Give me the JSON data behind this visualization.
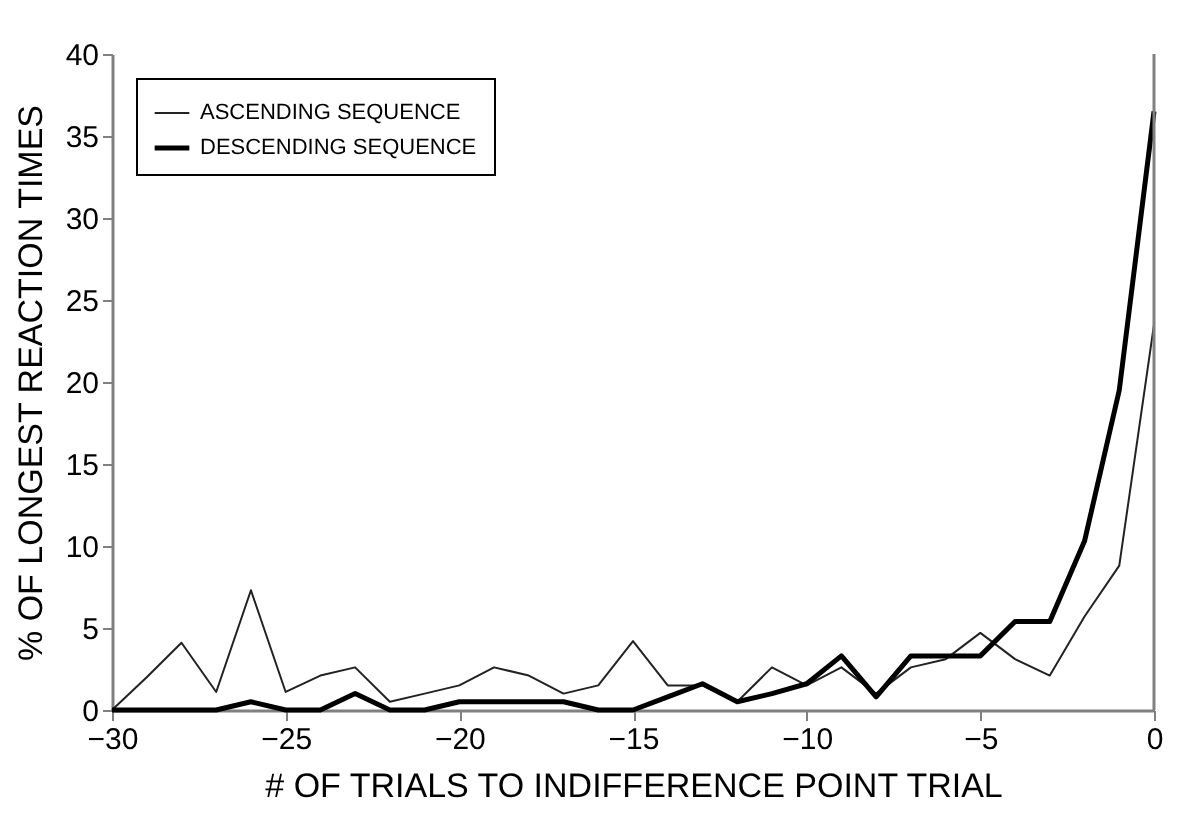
{
  "chart_data": {
    "type": "line",
    "xlabel": "# OF TRIALS TO INDIFFERENCE POINT TRIAL",
    "ylabel": "% OF LONGEST REACTION TIMES",
    "x": [
      -30,
      -29,
      -28,
      -27,
      -26,
      -25,
      -24,
      -23,
      -22,
      -21,
      -20,
      -19,
      -18,
      -17,
      -16,
      -15,
      -14,
      -13,
      -12,
      -11,
      -10,
      -9,
      -8,
      -7,
      -6,
      -5,
      -4,
      -3,
      -2,
      -1,
      0
    ],
    "series": [
      {
        "name": "ASCENDING SEQUENCE",
        "color": "#222222",
        "values": [
          0,
          2,
          4.1,
          1.1,
          7.3,
          1.1,
          2.1,
          2.6,
          0.5,
          1.0,
          1.5,
          2.6,
          2.1,
          1.0,
          1.5,
          4.2,
          1.5,
          1.5,
          0.5,
          2.6,
          1.5,
          2.6,
          1.0,
          2.6,
          3.1,
          4.7,
          3.1,
          2.1,
          5.7,
          8.8,
          23.5
        ]
      },
      {
        "name": "DESCENDING SEQUENCE",
        "color": "#000000",
        "values": [
          0,
          0,
          0,
          0,
          0.5,
          0,
          0,
          1.0,
          0,
          0,
          0.5,
          0.5,
          0.5,
          0.5,
          0,
          0,
          0.8,
          1.6,
          0.5,
          1.0,
          1.6,
          3.3,
          0.8,
          3.3,
          3.3,
          3.3,
          5.4,
          5.4,
          10.3,
          19.5,
          36.5
        ]
      }
    ],
    "xlim": [
      -30,
      0
    ],
    "xticks": [
      -30,
      -25,
      -20,
      -15,
      -10,
      -5,
      0
    ],
    "ylim": [
      0,
      40
    ],
    "yticks": [
      0,
      5,
      10,
      15,
      20,
      25,
      30,
      35,
      40
    ],
    "ref_lines": [
      {
        "axis": "x",
        "value": 0,
        "color": "#808080"
      }
    ],
    "grid": false,
    "legend": "top left",
    "marker": "none",
    "line_style": "solid"
  }
}
